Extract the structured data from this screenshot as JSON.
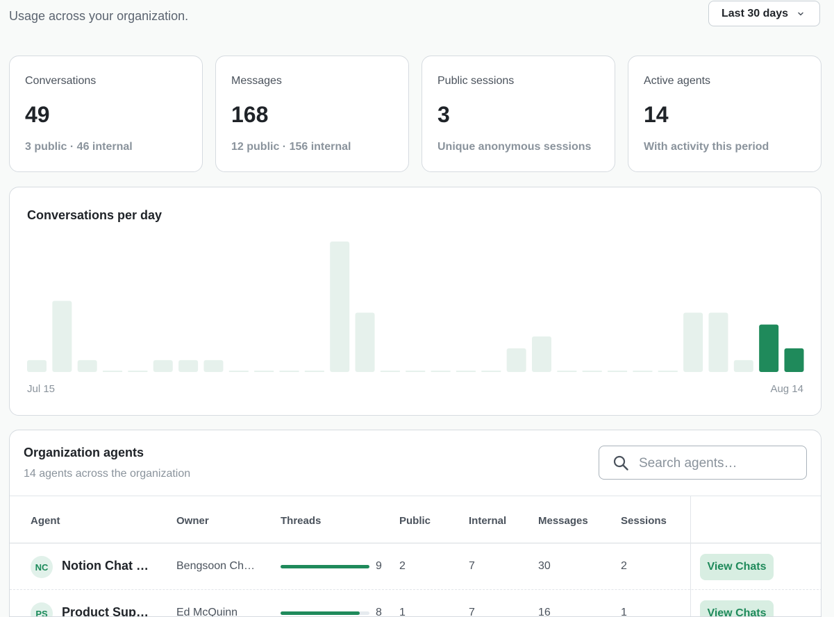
{
  "header": {
    "subtitle": "Usage across your organization."
  },
  "range": {
    "label": "Last 30 days"
  },
  "stats": [
    {
      "label": "Conversations",
      "value": "49",
      "sub": "3 public · 46 internal"
    },
    {
      "label": "Messages",
      "value": "168",
      "sub": "12 public · 156 internal"
    },
    {
      "label": "Public sessions",
      "value": "3",
      "sub": "Unique anonymous sessions"
    },
    {
      "label": "Active agents",
      "value": "14",
      "sub": "With activity this period"
    }
  ],
  "chart_data": {
    "type": "bar",
    "title": "Conversations per day",
    "x_start_label": "Jul 15",
    "x_end_label": "Aug 14",
    "values": [
      1,
      6,
      1,
      0,
      0,
      1,
      1,
      1,
      0,
      0,
      0,
      0,
      11,
      5,
      0,
      0,
      0,
      0,
      0,
      2,
      3,
      0,
      0,
      0,
      0,
      0,
      5,
      5,
      1,
      4,
      2
    ],
    "highlighted": [
      false,
      false,
      false,
      false,
      false,
      false,
      false,
      false,
      false,
      false,
      false,
      false,
      false,
      false,
      false,
      false,
      false,
      false,
      false,
      false,
      false,
      false,
      false,
      false,
      false,
      false,
      false,
      false,
      false,
      true,
      true
    ],
    "colors": {
      "muted": "#e6f1ec",
      "highlight": "#1f8a5b"
    }
  },
  "agents": {
    "title": "Organization agents",
    "subtitle": "14 agents across the organization",
    "search_placeholder": "Search agents…",
    "columns": {
      "agent": "Agent",
      "owner": "Owner",
      "threads": "Threads",
      "public": "Public",
      "internal": "Internal",
      "messages": "Messages",
      "sessions": "Sessions"
    },
    "rows": [
      {
        "initials": "NC",
        "name": "Notion Chat …",
        "owner": "Bengsoon Ch…",
        "threads": "9",
        "threads_fraction": 1.0,
        "public": "2",
        "internal": "7",
        "messages": "30",
        "sessions": "2",
        "action": "View Chats"
      },
      {
        "initials": "PS",
        "name": "Product Sup…",
        "owner": "Ed McQuinn",
        "threads": "8",
        "threads_fraction": 0.89,
        "public": "1",
        "internal": "7",
        "messages": "16",
        "sessions": "1",
        "action": "View Chats"
      }
    ]
  }
}
